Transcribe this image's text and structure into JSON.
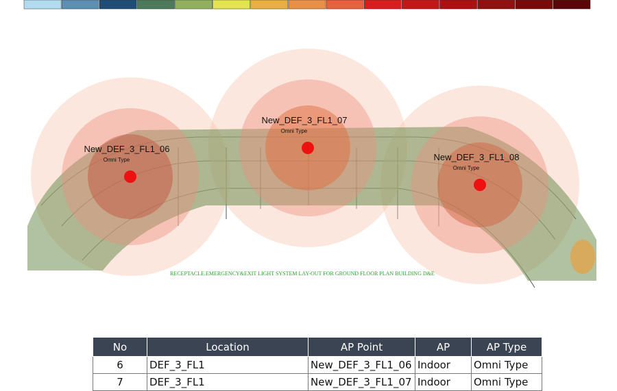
{
  "color_scale": [
    "#b3dbf0",
    "#5c8fb3",
    "#1e4d78",
    "#4e7a5c",
    "#90b060",
    "#e4e44c",
    "#e8b040",
    "#e89048",
    "#e86040",
    "#d81e1e",
    "#c41818",
    "#ac1010",
    "#921010",
    "#7a0a0a",
    "#5a0606"
  ],
  "map": {
    "access_points": [
      {
        "name": "New_DEF_3_FL1_06",
        "type": "Omni Type"
      },
      {
        "name": "New_DEF_3_FL1_07",
        "type": "Omni Type"
      },
      {
        "name": "New_DEF_3_FL1_08",
        "type": "Omni Type"
      }
    ],
    "caption": "RECEPTACLE.EMERGENCY&EXIT LIGHT SYSTEM LAY-OUT FOR GROUND FLOOR PLAN BUILDING D&E"
  },
  "table": {
    "headers": [
      "No",
      "Location",
      "AP Point",
      "AP",
      "AP Type"
    ],
    "rows": [
      [
        "6",
        "DEF_3_FL1",
        "New_DEF_3_FL1_06",
        "Indoor",
        "Omni Type"
      ],
      [
        "7",
        "DEF_3_FL1",
        "New_DEF_3_FL1_07",
        "Indoor",
        "Omni Type"
      ]
    ]
  }
}
